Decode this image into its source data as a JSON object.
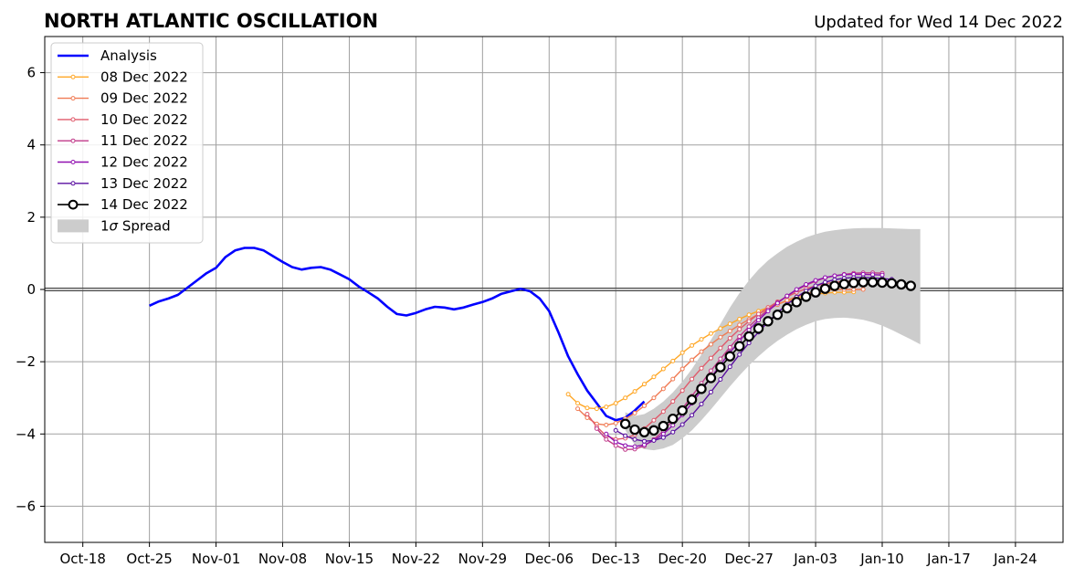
{
  "chart_data": {
    "type": "line",
    "title": "NORTH ATLANTIC OSCILLATION",
    "subtitle": "Updated for Wed 14 Dec 2022",
    "xlabel": "",
    "ylabel": "",
    "xlim": [
      "2022-10-14",
      "2023-01-29"
    ],
    "ylim": [
      -7,
      7
    ],
    "yticks": [
      -6,
      -4,
      -2,
      0,
      2,
      4,
      6
    ],
    "xticks": [
      {
        "date": "2022-10-18",
        "label": "Oct-18"
      },
      {
        "date": "2022-10-25",
        "label": "Oct-25"
      },
      {
        "date": "2022-11-01",
        "label": "Nov-01"
      },
      {
        "date": "2022-11-08",
        "label": "Nov-08"
      },
      {
        "date": "2022-11-15",
        "label": "Nov-15"
      },
      {
        "date": "2022-11-22",
        "label": "Nov-22"
      },
      {
        "date": "2022-11-29",
        "label": "Nov-29"
      },
      {
        "date": "2022-12-06",
        "label": "Dec-06"
      },
      {
        "date": "2022-12-13",
        "label": "Dec-13"
      },
      {
        "date": "2022-12-20",
        "label": "Dec-20"
      },
      {
        "date": "2022-12-27",
        "label": "Dec-27"
      },
      {
        "date": "2023-01-03",
        "label": "Jan-03"
      },
      {
        "date": "2023-01-10",
        "label": "Jan-10"
      },
      {
        "date": "2023-01-17",
        "label": "Jan-17"
      },
      {
        "date": "2023-01-24",
        "label": "Jan-24"
      }
    ],
    "grid": true,
    "legend_position": "upper-left",
    "spread": {
      "name": "1σ Spread",
      "label_prefix": "1",
      "label_symbol": "σ",
      "label_suffix": " Spread",
      "color": "#cccccc",
      "start": "2022-12-14",
      "upper": [
        -3.4,
        -3.5,
        -3.45,
        -3.3,
        -3.1,
        -2.85,
        -2.55,
        -2.2,
        -1.8,
        -1.4,
        -0.95,
        -0.5,
        -0.1,
        0.25,
        0.55,
        0.8,
        1.0,
        1.18,
        1.32,
        1.44,
        1.53,
        1.6,
        1.64,
        1.67,
        1.69,
        1.7,
        1.7,
        1.7,
        1.69,
        1.68,
        1.67,
        1.67
      ],
      "lower": [
        -3.9,
        -4.3,
        -4.42,
        -4.45,
        -4.4,
        -4.3,
        -4.12,
        -3.9,
        -3.62,
        -3.32,
        -3.0,
        -2.68,
        -2.38,
        -2.1,
        -1.85,
        -1.62,
        -1.42,
        -1.25,
        -1.1,
        -0.98,
        -0.88,
        -0.82,
        -0.79,
        -0.78,
        -0.8,
        -0.84,
        -0.91,
        -1.0,
        -1.12,
        -1.25,
        -1.38,
        -1.52
      ]
    },
    "series": [
      {
        "name": "Analysis",
        "color": "#0000ff",
        "start": "2022-10-25",
        "marker": "none",
        "values": [
          -0.45,
          -0.33,
          -0.25,
          -0.15,
          0.05,
          0.25,
          0.45,
          0.6,
          0.9,
          1.08,
          1.15,
          1.15,
          1.08,
          0.92,
          0.76,
          0.62,
          0.55,
          0.6,
          0.62,
          0.55,
          0.42,
          0.28,
          0.08,
          -0.08,
          -0.25,
          -0.48,
          -0.68,
          -0.72,
          -0.65,
          -0.55,
          -0.48,
          -0.5,
          -0.55,
          -0.5,
          -0.42,
          -0.35,
          -0.25,
          -0.12,
          -0.05,
          0.02,
          -0.05,
          -0.25,
          -0.6,
          -1.2,
          -1.85,
          -2.35,
          -2.8,
          -3.15,
          -3.5,
          -3.62,
          -3.55,
          -3.35,
          -3.1
        ]
      },
      {
        "name": "08 Dec 2022",
        "color": "#ffa726",
        "start": "2022-12-08",
        "marker": "dot",
        "values": [
          -2.9,
          -3.15,
          -3.28,
          -3.3,
          -3.25,
          -3.15,
          -3.0,
          -2.82,
          -2.62,
          -2.42,
          -2.2,
          -1.98,
          -1.75,
          -1.55,
          -1.38,
          -1.22,
          -1.08,
          -0.95,
          -0.82,
          -0.7,
          -0.6,
          -0.5,
          -0.4,
          -0.32,
          -0.25,
          -0.18,
          -0.13,
          -0.1,
          -0.08,
          -0.08,
          -0.07
        ]
      },
      {
        "name": "09 Dec 2022",
        "color": "#f07a53",
        "start": "2022-12-09",
        "marker": "dot",
        "values": [
          -3.3,
          -3.55,
          -3.72,
          -3.75,
          -3.7,
          -3.58,
          -3.42,
          -3.22,
          -3.0,
          -2.75,
          -2.48,
          -2.2,
          -1.95,
          -1.72,
          -1.52,
          -1.32,
          -1.15,
          -0.98,
          -0.83,
          -0.68,
          -0.55,
          -0.42,
          -0.3,
          -0.2,
          -0.12,
          -0.06,
          -0.02,
          0.0,
          0.0,
          0.0,
          0.0
        ]
      },
      {
        "name": "10 Dec 2022",
        "color": "#e05a6b",
        "start": "2022-12-10",
        "marker": "dot",
        "values": [
          -3.45,
          -3.8,
          -4.05,
          -4.15,
          -4.12,
          -4.02,
          -3.85,
          -3.62,
          -3.38,
          -3.1,
          -2.8,
          -2.48,
          -2.18,
          -1.9,
          -1.62,
          -1.35,
          -1.1,
          -0.88,
          -0.68,
          -0.5,
          -0.34,
          -0.2,
          -0.08,
          0.02,
          0.1,
          0.16,
          0.2,
          0.22,
          0.23,
          0.22,
          0.2
        ]
      },
      {
        "name": "11 Dec 2022",
        "color": "#c13a8a",
        "start": "2022-12-11",
        "marker": "dot",
        "values": [
          -3.85,
          -4.15,
          -4.32,
          -4.43,
          -4.42,
          -4.33,
          -4.15,
          -3.92,
          -3.62,
          -3.3,
          -2.95,
          -2.6,
          -2.25,
          -1.92,
          -1.6,
          -1.3,
          -1.03,
          -0.78,
          -0.56,
          -0.36,
          -0.18,
          -0.02,
          0.12,
          0.23,
          0.32,
          0.38,
          0.42,
          0.45,
          0.46,
          0.46,
          0.45
        ]
      },
      {
        "name": "12 Dec 2022",
        "color": "#9010b0",
        "start": "2022-12-12",
        "marker": "dot",
        "values": [
          -4.0,
          -4.22,
          -4.32,
          -4.35,
          -4.3,
          -4.18,
          -4.0,
          -3.76,
          -3.47,
          -3.15,
          -2.8,
          -2.44,
          -2.08,
          -1.74,
          -1.42,
          -1.12,
          -0.85,
          -0.6,
          -0.38,
          -0.18,
          0.0,
          0.14,
          0.25,
          0.33,
          0.38,
          0.41,
          0.42,
          0.42,
          0.41,
          0.4
        ]
      },
      {
        "name": "13 Dec 2022",
        "color": "#5a0fa0",
        "start": "2022-12-13",
        "marker": "dot",
        "values": [
          -3.9,
          -4.05,
          -4.15,
          -4.2,
          -4.18,
          -4.1,
          -3.95,
          -3.74,
          -3.48,
          -3.17,
          -2.84,
          -2.49,
          -2.14,
          -1.8,
          -1.48,
          -1.18,
          -0.9,
          -0.64,
          -0.41,
          -0.21,
          -0.04,
          0.1,
          0.2,
          0.27,
          0.31,
          0.33,
          0.33,
          0.32,
          0.3,
          0.28
        ]
      },
      {
        "name": "14 Dec 2022",
        "color": "#000000",
        "start": "2022-12-14",
        "marker": "circle",
        "values": [
          -3.72,
          -3.88,
          -3.95,
          -3.9,
          -3.78,
          -3.58,
          -3.35,
          -3.05,
          -2.75,
          -2.45,
          -2.15,
          -1.85,
          -1.57,
          -1.3,
          -1.08,
          -0.88,
          -0.7,
          -0.52,
          -0.35,
          -0.2,
          -0.08,
          0.02,
          0.1,
          0.15,
          0.18,
          0.2,
          0.2,
          0.19,
          0.17,
          0.14,
          0.1
        ]
      }
    ]
  }
}
